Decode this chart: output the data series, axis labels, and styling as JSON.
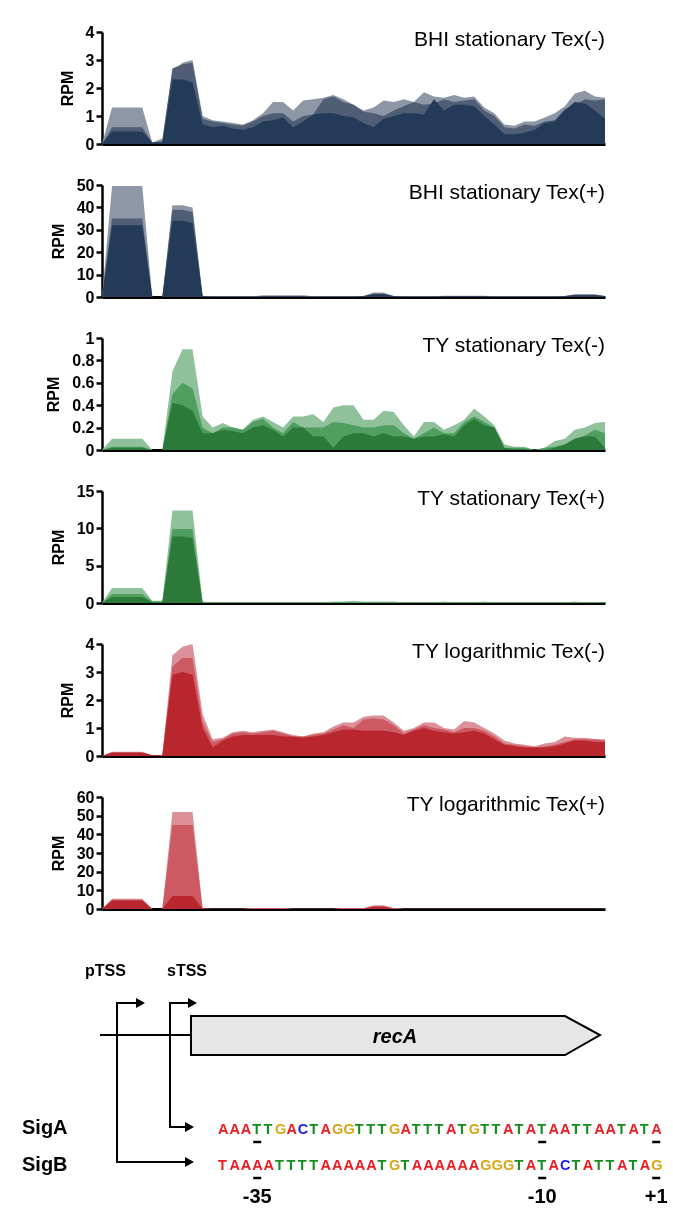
{
  "chart_data": [
    {
      "type": "area",
      "title": "BHI stationary Tex(-)",
      "ylabel": "RPM",
      "ylim": [
        0,
        4
      ],
      "yticks": [
        0,
        1,
        2,
        3,
        4
      ],
      "categories": [
        null,
        null,
        null,
        null,
        null,
        null,
        null,
        null,
        null,
        null,
        null,
        null,
        null,
        null,
        null,
        null,
        null,
        null,
        null,
        null,
        null,
        null,
        null,
        null,
        null,
        null,
        null,
        null,
        null,
        null,
        null,
        null,
        null,
        null,
        null,
        null,
        null,
        null,
        null,
        null,
        null,
        null,
        null,
        null,
        null,
        null,
        null,
        null,
        null,
        null,
        null
      ],
      "series": [
        {
          "color": "#8d97a6",
          "values": [
            0,
            1.3,
            1.3,
            1.3,
            1.3,
            0.05,
            0.2,
            2.6,
            2.9,
            3.0,
            1.0,
            0.85,
            0.8,
            0.75,
            0.7,
            0.85,
            1.1,
            1.5,
            1.5,
            1.2,
            1.55,
            1.6,
            1.65,
            1.75,
            1.6,
            1.4,
            1.2,
            1.3,
            1.55,
            1.5,
            1.6,
            1.5,
            1.85,
            1.7,
            1.65,
            1.75,
            1.65,
            1.7,
            1.3,
            1.1,
            0.7,
            0.65,
            0.8,
            0.8,
            0.95,
            1.1,
            1.35,
            1.8,
            1.9,
            1.7,
            1.65
          ]
        },
        {
          "color": "#4f5e75",
          "values": [
            0,
            0.6,
            0.6,
            0.6,
            0.6,
            0.05,
            0.1,
            2.7,
            2.85,
            2.9,
            0.9,
            0.8,
            0.75,
            0.7,
            0.65,
            0.8,
            1.0,
            1.1,
            1.1,
            0.8,
            1.0,
            1.05,
            1.6,
            1.7,
            1.5,
            1.4,
            1.15,
            1.1,
            1.0,
            1.2,
            1.35,
            1.5,
            1.4,
            1.45,
            1.6,
            1.5,
            1.55,
            1.6,
            1.2,
            1.0,
            0.6,
            0.55,
            0.7,
            0.65,
            0.8,
            0.85,
            1.25,
            1.4,
            1.6,
            1.55,
            1.6
          ]
        },
        {
          "color": "#233a58",
          "values": [
            0,
            0.45,
            0.45,
            0.45,
            0.45,
            0.05,
            0.05,
            2.3,
            2.3,
            2.2,
            0.7,
            0.6,
            0.65,
            0.55,
            0.5,
            0.6,
            0.8,
            0.85,
            0.95,
            0.6,
            0.8,
            1.05,
            1.1,
            1.1,
            1.0,
            0.95,
            0.75,
            0.6,
            0.9,
            1.0,
            1.1,
            1.1,
            1.05,
            1.6,
            1.2,
            1.4,
            1.4,
            1.35,
            1.0,
            0.7,
            0.35,
            0.35,
            0.4,
            0.5,
            0.75,
            0.8,
            1.2,
            1.5,
            1.45,
            1.2,
            0.9
          ]
        }
      ]
    },
    {
      "type": "area",
      "title": "BHI stationary Tex(+)",
      "ylabel": "RPM",
      "ylim": [
        0,
        50
      ],
      "yticks": [
        0,
        10,
        20,
        30,
        40,
        50
      ],
      "categories": [
        null,
        null,
        null,
        null,
        null,
        null,
        null,
        null,
        null,
        null,
        null,
        null,
        null,
        null,
        null,
        null,
        null,
        null,
        null,
        null,
        null,
        null,
        null,
        null,
        null,
        null,
        null,
        null,
        null,
        null,
        null,
        null,
        null,
        null,
        null,
        null,
        null,
        null,
        null,
        null,
        null,
        null,
        null,
        null,
        null,
        null,
        null,
        null,
        null,
        null,
        null
      ],
      "series": [
        {
          "color": "#8d97a6",
          "values": [
            0,
            49.5,
            49.5,
            49.5,
            49.5,
            0,
            0,
            41,
            41,
            40,
            0.5,
            0.3,
            0.3,
            0.3,
            0.3,
            0.3,
            0.8,
            0.8,
            0.8,
            0.8,
            0.8,
            0.3,
            0.3,
            0.3,
            0.3,
            0.3,
            0.5,
            2,
            2,
            0.5,
            0.3,
            0.3,
            0.3,
            0.3,
            0.6,
            0.6,
            0.6,
            0.6,
            0.6,
            0.3,
            0.3,
            0.3,
            0.3,
            0.3,
            0.3,
            0.3,
            0.5,
            1.2,
            1.2,
            1.2,
            0.5
          ]
        },
        {
          "color": "#4f5e75",
          "values": [
            0,
            35,
            35,
            35,
            35,
            0,
            0,
            39,
            39,
            38,
            0.4,
            0.2,
            0.2,
            0.2,
            0.2,
            0.2,
            0.5,
            0.5,
            0.5,
            0.5,
            0.5,
            0.2,
            0.2,
            0.2,
            0.2,
            0.2,
            0.4,
            1.5,
            1.5,
            0.4,
            0.2,
            0.2,
            0.2,
            0.2,
            0.4,
            0.4,
            0.4,
            0.4,
            0.4,
            0.2,
            0.2,
            0.2,
            0.2,
            0.2,
            0.2,
            0.2,
            0.4,
            1,
            1,
            1,
            0.4
          ]
        },
        {
          "color": "#233a58",
          "values": [
            0,
            32,
            32,
            32,
            32,
            0,
            0,
            34,
            34,
            33,
            0.3,
            0.1,
            0.1,
            0.1,
            0.1,
            0.1,
            0.3,
            0.3,
            0.3,
            0.3,
            0.3,
            0.1,
            0.1,
            0.1,
            0.1,
            0.1,
            0.3,
            1.2,
            1.2,
            0.3,
            0.1,
            0.1,
            0.1,
            0.1,
            0.3,
            0.3,
            0.3,
            0.3,
            0.3,
            0.1,
            0.1,
            0.1,
            0.1,
            0.1,
            0.1,
            0.1,
            0.3,
            0.8,
            0.8,
            0.8,
            0.3
          ]
        }
      ]
    },
    {
      "type": "area",
      "title": "TY stationary Tex(-)",
      "ylabel": "RPM",
      "ylim": [
        0,
        1
      ],
      "yticks": [
        0,
        0.2,
        0.4,
        0.6,
        0.8,
        1
      ],
      "categories": [
        null,
        null,
        null,
        null,
        null,
        null,
        null,
        null,
        null,
        null,
        null,
        null,
        null,
        null,
        null,
        null,
        null,
        null,
        null,
        null,
        null,
        null,
        null,
        null,
        null,
        null,
        null,
        null,
        null,
        null,
        null,
        null,
        null,
        null,
        null,
        null,
        null,
        null,
        null,
        null,
        null,
        null,
        null,
        null,
        null,
        null,
        null,
        null,
        null,
        null,
        null
      ],
      "series": [
        {
          "color": "#8fc19a",
          "values": [
            0,
            0.1,
            0.1,
            0.1,
            0.1,
            0,
            0,
            0.7,
            0.9,
            0.9,
            0.3,
            0.2,
            0.24,
            0.2,
            0.18,
            0.27,
            0.3,
            0.25,
            0.2,
            0.3,
            0.3,
            0.32,
            0.25,
            0.38,
            0.4,
            0.4,
            0.27,
            0.27,
            0.35,
            0.34,
            0.22,
            0.12,
            0.25,
            0.25,
            0.18,
            0.22,
            0.27,
            0.37,
            0.3,
            0.22,
            0.05,
            0.03,
            0.03,
            0,
            0.02,
            0.08,
            0.1,
            0.18,
            0.2,
            0.24,
            0.25
          ]
        },
        {
          "color": "#519e61",
          "values": [
            0,
            0.03,
            0.03,
            0.03,
            0.03,
            0,
            0,
            0.5,
            0.6,
            0.55,
            0.2,
            0.15,
            0.2,
            0.2,
            0.18,
            0.25,
            0.28,
            0.2,
            0.15,
            0.25,
            0.2,
            0.2,
            0.2,
            0.25,
            0.24,
            0.22,
            0.2,
            0.2,
            0.22,
            0.22,
            0.15,
            0.1,
            0.15,
            0.2,
            0.15,
            0.15,
            0.25,
            0.3,
            0.25,
            0.2,
            0.02,
            0.02,
            0.02,
            0,
            0.02,
            0.03,
            0.05,
            0.1,
            0.13,
            0.18,
            0.15
          ]
        },
        {
          "color": "#2b7a3a",
          "values": [
            0,
            0.02,
            0.02,
            0.02,
            0.02,
            0,
            0,
            0.42,
            0.4,
            0.35,
            0.15,
            0.15,
            0.18,
            0.17,
            0.15,
            0.2,
            0.22,
            0.18,
            0.12,
            0.2,
            0.2,
            0.12,
            0.12,
            0.02,
            0.12,
            0.15,
            0.15,
            0.12,
            0.15,
            0.12,
            0.12,
            0.1,
            0.12,
            0.12,
            0.14,
            0.12,
            0.22,
            0.28,
            0.22,
            0.2,
            0.02,
            0.01,
            0.01,
            0,
            0,
            0.02,
            0.05,
            0.1,
            0.12,
            0.12,
            0.02
          ]
        }
      ]
    },
    {
      "type": "area",
      "title": "TY stationary Tex(+)",
      "ylabel": "RPM",
      "ylim": [
        0,
        15
      ],
      "yticks": [
        0,
        5,
        10,
        15
      ],
      "categories": [
        null,
        null,
        null,
        null,
        null,
        null,
        null,
        null,
        null,
        null,
        null,
        null,
        null,
        null,
        null,
        null,
        null,
        null,
        null,
        null,
        null,
        null,
        null,
        null,
        null,
        null,
        null,
        null,
        null,
        null,
        null,
        null,
        null,
        null,
        null,
        null,
        null,
        null,
        null,
        null,
        null,
        null,
        null,
        null,
        null,
        null,
        null,
        null,
        null,
        null,
        null
      ],
      "series": [
        {
          "color": "#8fc19a",
          "values": [
            0,
            2,
            2,
            2,
            2,
            0.3,
            0.3,
            12.4,
            12.4,
            12.4,
            0.2,
            0.1,
            0.1,
            0.1,
            0.1,
            0.1,
            0.1,
            0.1,
            0.1,
            0.1,
            0.1,
            0.1,
            0.1,
            0.2,
            0.2,
            0.3,
            0.2,
            0.2,
            0.2,
            0.2,
            0.1,
            0.1,
            0.1,
            0.1,
            0.2,
            0.1,
            0.1,
            0.1,
            0.2,
            0.1,
            0.1,
            0.1,
            0.1,
            0.1,
            0.1,
            0.1,
            0.1,
            0.2,
            0.1,
            0.1,
            0.1
          ]
        },
        {
          "color": "#519e61",
          "values": [
            0,
            1.2,
            1.2,
            1.2,
            1.2,
            0.2,
            0.2,
            9.9,
            9.9,
            9.9,
            0.1,
            0.1,
            0.1,
            0.1,
            0.1,
            0.1,
            0.1,
            0.1,
            0.1,
            0.1,
            0.1,
            0.1,
            0.1,
            0.1,
            0.1,
            0.1,
            0.1,
            0.1,
            0.1,
            0.1,
            0.1,
            0.1,
            0.1,
            0.1,
            0.1,
            0.1,
            0.1,
            0.1,
            0.1,
            0.1,
            0.1,
            0.1,
            0.1,
            0.1,
            0.1,
            0.1,
            0.1,
            0.1,
            0.1,
            0.1,
            0.1
          ]
        },
        {
          "color": "#2b7a3a",
          "values": [
            0,
            0.8,
            0.8,
            0.8,
            0.8,
            0.1,
            0.1,
            8.9,
            8.9,
            8.7,
            0,
            0,
            0,
            0,
            0,
            0,
            0,
            0,
            0,
            0,
            0,
            0,
            0,
            0,
            0,
            0,
            0,
            0,
            0,
            0,
            0,
            0,
            0,
            0,
            0,
            0,
            0,
            0,
            0,
            0,
            0,
            0,
            0,
            0,
            0,
            0,
            0,
            0,
            0,
            0,
            0
          ]
        }
      ]
    },
    {
      "type": "area",
      "title": "TY logarithmic Tex(-)",
      "ylabel": "RPM",
      "ylim": [
        0,
        4
      ],
      "yticks": [
        0,
        1,
        2,
        3,
        4
      ],
      "categories": [
        null,
        null,
        null,
        null,
        null,
        null,
        null,
        null,
        null,
        null,
        null,
        null,
        null,
        null,
        null,
        null,
        null,
        null,
        null,
        null,
        null,
        null,
        null,
        null,
        null,
        null,
        null,
        null,
        null,
        null,
        null,
        null,
        null,
        null,
        null,
        null,
        null,
        null,
        null,
        null,
        null,
        null,
        null,
        null,
        null,
        null,
        null,
        null,
        null,
        null,
        null
      ],
      "series": [
        {
          "color": "#dc9198",
          "values": [
            0,
            0.15,
            0.15,
            0.15,
            0.15,
            0.03,
            0.03,
            3.6,
            3.9,
            4.0,
            1.5,
            0.6,
            0.65,
            0.85,
            0.9,
            0.85,
            0.9,
            0.95,
            0.85,
            0.75,
            0.7,
            0.8,
            0.85,
            1.05,
            1.2,
            1.2,
            1.4,
            1.45,
            1.45,
            1.2,
            0.9,
            1.0,
            1.2,
            1.2,
            1.0,
            0.95,
            1.25,
            1.2,
            1.0,
            0.8,
            0.55,
            0.45,
            0.4,
            0.35,
            0.45,
            0.5,
            0.7,
            0.65,
            0.65,
            0.6,
            0.6
          ]
        },
        {
          "color": "#cd5a62",
          "values": [
            0,
            0.13,
            0.13,
            0.13,
            0.13,
            0.03,
            0.03,
            3.2,
            3.5,
            3.5,
            1.2,
            0.5,
            0.6,
            0.8,
            0.85,
            0.8,
            0.85,
            0.9,
            0.8,
            0.7,
            0.7,
            0.75,
            0.8,
            0.95,
            1.1,
            1.0,
            1.3,
            1.35,
            1.3,
            1.1,
            0.8,
            0.95,
            1.1,
            1.0,
            0.95,
            0.85,
            1.0,
            1.0,
            0.9,
            0.7,
            0.45,
            0.4,
            0.35,
            0.3,
            0.35,
            0.4,
            0.5,
            0.6,
            0.6,
            0.6,
            0.55
          ]
        },
        {
          "color": "#b9262e",
          "values": [
            0,
            0.12,
            0.12,
            0.12,
            0.12,
            0.03,
            0.03,
            2.9,
            3.0,
            2.9,
            1.0,
            0.3,
            0.55,
            0.7,
            0.75,
            0.75,
            0.75,
            0.75,
            0.7,
            0.7,
            0.65,
            0.7,
            0.75,
            0.85,
            0.95,
            0.95,
            0.9,
            0.9,
            0.9,
            0.85,
            0.75,
            0.9,
            1.0,
            0.9,
            0.85,
            0.8,
            0.85,
            0.9,
            0.8,
            0.6,
            0.4,
            0.35,
            0.3,
            0.3,
            0.3,
            0.35,
            0.45,
            0.55,
            0.55,
            0.5,
            0.5
          ]
        }
      ]
    },
    {
      "type": "area",
      "title": "TY logarithmic Tex(+)",
      "ylabel": "RPM",
      "ylim": [
        0,
        60
      ],
      "yticks": [
        0,
        10,
        20,
        30,
        40,
        50,
        60
      ],
      "categories": [
        null,
        null,
        null,
        null,
        null,
        null,
        null,
        null,
        null,
        null,
        null,
        null,
        null,
        null,
        null,
        null,
        null,
        null,
        null,
        null,
        null,
        null,
        null,
        null,
        null,
        null,
        null,
        null,
        null,
        null,
        null,
        null,
        null,
        null,
        null,
        null,
        null,
        null,
        null,
        null,
        null,
        null,
        null,
        null,
        null,
        null,
        null,
        null,
        null,
        null,
        null
      ],
      "series": [
        {
          "color": "#dc9198",
          "values": [
            0,
            5.5,
            5.5,
            5.5,
            5.5,
            0,
            0,
            52,
            52,
            52,
            0.3,
            0.1,
            0.1,
            0.1,
            0.1,
            0.5,
            0.5,
            0.5,
            0.5,
            0.1,
            0.1,
            0.1,
            0.1,
            0.1,
            0.5,
            0.5,
            0.5,
            2,
            2,
            0.5,
            0.1,
            0.1,
            0.1,
            0.1,
            0.1,
            0.1,
            0.1,
            0.1,
            0.1,
            0.1,
            0.1,
            0.1,
            0.1,
            0.1,
            0.1,
            0.1,
            0.1,
            0.1,
            0.1,
            0.1,
            0.1
          ]
        },
        {
          "color": "#cd5a62",
          "values": [
            0,
            5,
            5,
            5,
            5,
            0,
            0,
            45,
            45,
            45,
            0.2,
            0,
            0,
            0,
            0,
            0.3,
            0.3,
            0.3,
            0.3,
            0,
            0,
            0,
            0,
            0,
            0.3,
            0.3,
            0.3,
            1.5,
            1.5,
            0.3,
            0,
            0,
            0,
            0,
            0,
            0,
            0,
            0,
            0,
            0,
            0,
            0,
            0,
            0,
            0,
            0,
            0,
            0,
            0,
            0,
            0
          ]
        },
        {
          "color": "#b9262e",
          "values": [
            0,
            4.5,
            4.5,
            4.5,
            4.5,
            0,
            0,
            7,
            7,
            7,
            0.1,
            0,
            0,
            0,
            0,
            0.2,
            0.2,
            0.2,
            0.2,
            0,
            0,
            0,
            0,
            0,
            0.2,
            0.2,
            0.2,
            1.2,
            1.2,
            0.2,
            0,
            0,
            0,
            0,
            0,
            0,
            0,
            0,
            0,
            0,
            0,
            0,
            0,
            0,
            0,
            0,
            0,
            0,
            0,
            0,
            0
          ]
        }
      ]
    },
    {
      "type": "other",
      "annotations": [
        "pTSS",
        "sTSS",
        "recA",
        "SigA",
        "SigB",
        "AAATTGACTAGGTTTGATTTATGTTATATAATTAATATA",
        "TAAAATTTTAAAAATGTAAAAAAGGGTATACTATTATAG",
        "-35",
        "-10",
        "+1"
      ],
      "colors": [
        "#ec1c24",
        "#ec1c24",
        "#ec1c24",
        "#158c1e",
        "#158c1e",
        "#d6a718",
        "#ec1c24",
        "#1c1cf0",
        "#158c1e",
        "#ec1c24",
        "#d6a718",
        "#d6a718",
        "#158c1e",
        "#158c1e",
        "#158c1e",
        "#d6a718",
        "#ec1c24",
        "#158c1e",
        "#158c1e",
        "#158c1e",
        "#ec1c24",
        "#158c1e",
        "#d6a718",
        "#158c1e",
        "#158c1e",
        "#ec1c24",
        "#158c1e",
        "#ec1c24",
        "#158c1e",
        "#ec1c24",
        "#ec1c24",
        "#158c1e",
        "#158c1e",
        "#ec1c24",
        "#ec1c24",
        "#158c1e",
        "#ec1c24",
        "#158c1e",
        "#ec1c24",
        "#ec1c24",
        "#ec1c24",
        "#ec1c24",
        "#ec1c24",
        "#ec1c24",
        "#158c1e",
        "#158c1e",
        "#158c1e",
        "#158c1e",
        "#ec1c24",
        "#ec1c24",
        "#ec1c24",
        "#ec1c24",
        "#ec1c24",
        "#158c1e",
        "#d6a718",
        "#158c1e",
        "#ec1c24",
        "#ec1c24",
        "#ec1c24",
        "#ec1c24",
        "#ec1c24",
        "#ec1c24",
        "#d6a718",
        "#d6a718",
        "#d6a718",
        "#158c1e",
        "#ec1c24",
        "#158c1e",
        "#ec1c24",
        "#1c1cf0",
        "#158c1e",
        "#ec1c24",
        "#158c1e",
        "#158c1e",
        "#ec1c24",
        "#158c1e",
        "#ec1c24",
        "#d6a718"
      ]
    }
  ]
}
